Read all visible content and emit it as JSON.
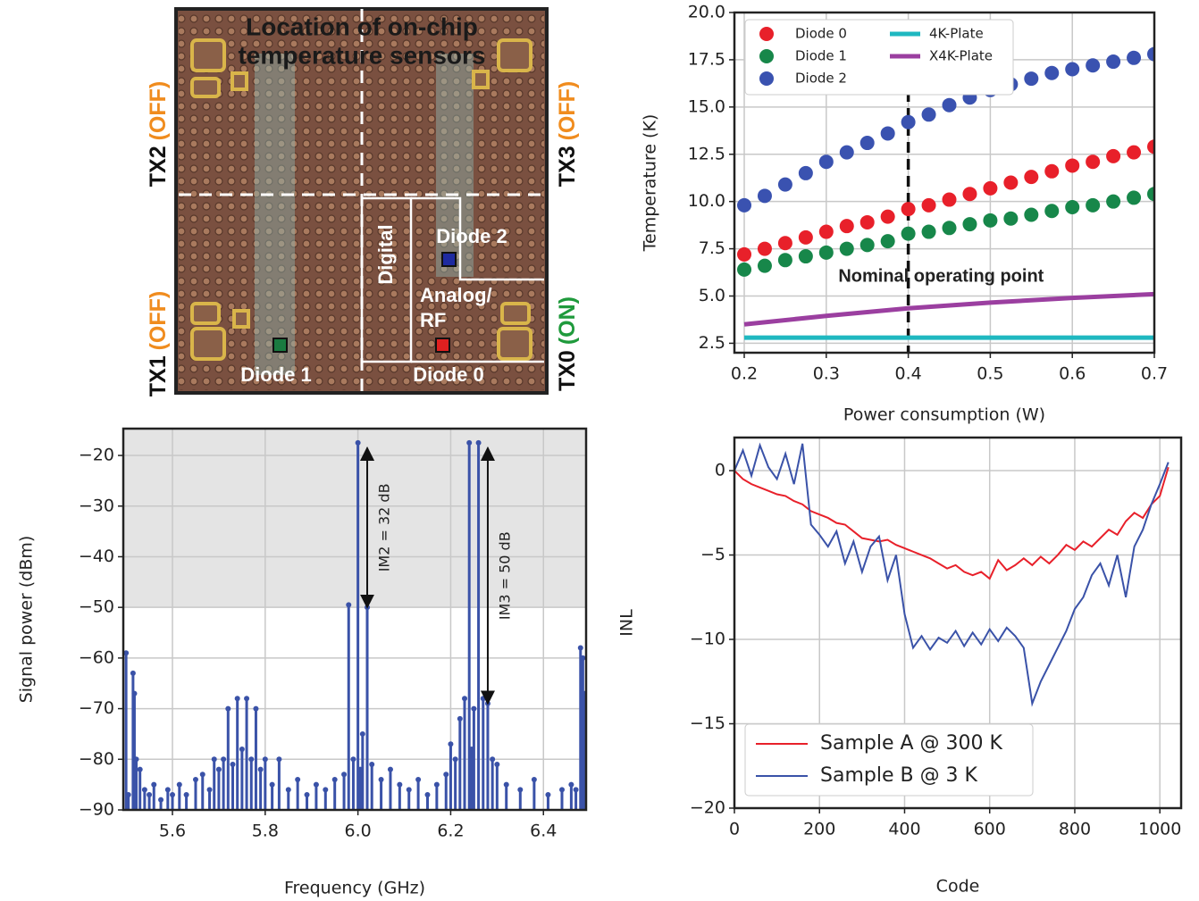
{
  "photo": {
    "title_lines": [
      "Location of on-chip",
      "temperature sensors"
    ],
    "tx": [
      {
        "name": "TX2",
        "state": "(OFF)"
      },
      {
        "name": "TX3",
        "state": "(OFF)"
      },
      {
        "name": "TX1",
        "state": "(OFF)"
      },
      {
        "name": "TX0",
        "state": "(ON)"
      }
    ],
    "regions": [
      "Digital",
      "Analog/",
      "RF"
    ],
    "diodes": [
      "Diode 2",
      "Diode 1",
      "Diode 0"
    ]
  },
  "chart_data": [
    {
      "type": "scatter",
      "xlabel": "Power consumption (W)",
      "ylabel": "Temperature (K)",
      "xlim": [
        0.188,
        0.7
      ],
      "ylim": [
        2.0,
        20
      ],
      "xticks": [
        0.2,
        0.3,
        0.4,
        0.5,
        0.6,
        0.7
      ],
      "yticks": [
        2.5,
        {
          "value": 5,
          "label": "5.0"
        },
        7.5,
        {
          "value": 10,
          "label": "10.0"
        },
        12.5,
        {
          "value": 15,
          "label": "15.0"
        },
        17.5,
        {
          "value": 20,
          "label": "20.0"
        }
      ],
      "grid": true,
      "legend": "upper left",
      "reference_x": 0.4,
      "annotations": [
        {
          "text": "Nominal operating point",
          "x": 0.44,
          "y": 6.0
        }
      ],
      "series": [
        {
          "name": "Diode 0",
          "color": "#e8202a",
          "kind": "marker",
          "x": [
            0.2,
            0.225,
            0.25,
            0.275,
            0.3,
            0.325,
            0.35,
            0.375,
            0.4,
            0.425,
            0.45,
            0.475,
            0.5,
            0.525,
            0.55,
            0.575,
            0.6,
            0.625,
            0.65,
            0.675,
            0.7
          ],
          "values": [
            7.2,
            7.5,
            7.8,
            8.1,
            8.4,
            8.7,
            8.9,
            9.2,
            9.6,
            9.8,
            10.1,
            10.4,
            10.7,
            11.0,
            11.3,
            11.6,
            11.9,
            12.1,
            12.4,
            12.6,
            12.9
          ]
        },
        {
          "name": "Diode 1",
          "color": "#17874a",
          "kind": "marker",
          "x": [
            0.2,
            0.225,
            0.25,
            0.275,
            0.3,
            0.325,
            0.35,
            0.375,
            0.4,
            0.425,
            0.45,
            0.475,
            0.5,
            0.525,
            0.55,
            0.575,
            0.6,
            0.625,
            0.65,
            0.675,
            0.7
          ],
          "values": [
            6.4,
            6.6,
            6.9,
            7.1,
            7.3,
            7.5,
            7.7,
            7.9,
            8.3,
            8.4,
            8.6,
            8.8,
            9.0,
            9.1,
            9.3,
            9.5,
            9.7,
            9.8,
            10.0,
            10.2,
            10.4
          ]
        },
        {
          "name": "Diode 2",
          "color": "#3a52b0",
          "kind": "marker",
          "x": [
            0.2,
            0.225,
            0.25,
            0.275,
            0.3,
            0.325,
            0.35,
            0.375,
            0.4,
            0.425,
            0.45,
            0.475,
            0.5,
            0.525,
            0.55,
            0.575,
            0.6,
            0.625,
            0.65,
            0.675,
            0.7
          ],
          "values": [
            9.8,
            10.3,
            10.9,
            11.5,
            12.1,
            12.6,
            13.1,
            13.6,
            14.2,
            14.6,
            15.1,
            15.5,
            15.9,
            16.2,
            16.5,
            16.8,
            17.0,
            17.2,
            17.4,
            17.6,
            17.8
          ]
        },
        {
          "name": "4K-Plate",
          "color": "#1fb8c0",
          "kind": "line",
          "x": [
            0.2,
            0.7
          ],
          "values": [
            2.8,
            2.8
          ]
        },
        {
          "name": "X4K-Plate",
          "color": "#9b3fa0",
          "kind": "line",
          "x": [
            0.2,
            0.3,
            0.4,
            0.5,
            0.6,
            0.7
          ],
          "values": [
            3.5,
            3.95,
            4.35,
            4.65,
            4.9,
            5.1
          ]
        }
      ]
    },
    {
      "type": "stem",
      "xlabel": "Frequency (GHz)",
      "ylabel": "Signal power (dBm)",
      "xlim": [
        5.494,
        6.492
      ],
      "ylim": [
        -90,
        -14.7
      ],
      "xticks": [
        5.6,
        5.8,
        {
          "value": 6,
          "label": "6.0"
        },
        6.2,
        6.4
      ],
      "yticks": [
        {
          "value": -90,
          "label": "−90"
        },
        {
          "value": -80,
          "label": "−80"
        },
        {
          "value": -70,
          "label": "−70"
        },
        {
          "value": -60,
          "label": "−60"
        },
        {
          "value": -50,
          "label": "−50"
        },
        {
          "value": -40,
          "label": "−40"
        },
        {
          "value": -30,
          "label": "−30"
        },
        {
          "value": -20,
          "label": "−20"
        }
      ],
      "grid": true,
      "color": "#3a52a8",
      "shaded_ylim": [
        -50,
        -14.7
      ],
      "annotations": [
        {
          "text": "IM2 = 32 dB",
          "x": 6.02,
          "y": [
            -18.5,
            -50
          ]
        },
        {
          "text": "IM3 = 50 dB",
          "x": 6.28,
          "y": [
            -18.5,
            -69
          ]
        }
      ],
      "x": [
        5.5,
        5.505,
        5.515,
        5.518,
        5.522,
        5.53,
        5.54,
        5.55,
        5.56,
        5.575,
        5.59,
        5.6,
        5.615,
        5.63,
        5.65,
        5.665,
        5.68,
        5.69,
        5.7,
        5.71,
        5.72,
        5.73,
        5.74,
        5.75,
        5.76,
        5.77,
        5.78,
        5.79,
        5.8,
        5.815,
        5.83,
        5.85,
        5.87,
        5.89,
        5.91,
        5.93,
        5.95,
        5.97,
        5.98,
        5.99,
        6.0,
        6.005,
        6.01,
        6.02,
        6.03,
        6.05,
        6.07,
        6.09,
        6.11,
        6.13,
        6.15,
        6.17,
        6.19,
        6.2,
        6.21,
        6.22,
        6.23,
        6.24,
        6.245,
        6.25,
        6.26,
        6.27,
        6.28,
        6.29,
        6.3,
        6.32,
        6.35,
        6.38,
        6.41,
        6.44,
        6.46,
        6.47,
        6.48,
        6.485,
        6.49,
        6.5
      ],
      "values": [
        -59,
        -87,
        -63,
        -67,
        -80,
        -82,
        -86,
        -87,
        -85,
        -88,
        -86,
        -87,
        -85,
        -87,
        -84,
        -83,
        -86,
        -80,
        -82,
        -80,
        -70,
        -81,
        -68,
        -78,
        -68,
        -80,
        -70,
        -82,
        -80,
        -85,
        -80,
        -86,
        -84,
        -87,
        -85,
        -86,
        -84,
        -83,
        -49.5,
        -80,
        -17.5,
        -82,
        -75,
        -50,
        -81,
        -84,
        -82,
        -85,
        -86,
        -84,
        -87,
        -85,
        -83,
        -77,
        -80,
        -72,
        -68,
        -17.5,
        -78,
        -70,
        -17.5,
        -68,
        -69,
        -80,
        -81,
        -85,
        -86,
        -84,
        -87,
        -86,
        -85,
        -86,
        -58,
        -60,
        -67,
        -82
      ]
    },
    {
      "type": "line",
      "xlabel": "Code",
      "ylabel": "INL",
      "xlim": [
        0,
        1050
      ],
      "ylim": [
        -20,
        1.96
      ],
      "xticks": [
        0,
        200,
        400,
        600,
        800,
        1000
      ],
      "yticks": [
        {
          "value": -20,
          "label": "−20"
        },
        {
          "value": -15,
          "label": "−15"
        },
        {
          "value": -10,
          "label": "−10"
        },
        {
          "value": -5,
          "label": "−5"
        },
        0
      ],
      "grid": true,
      "legend": "lower left",
      "x": [
        0,
        20,
        40,
        60,
        80,
        100,
        120,
        140,
        160,
        180,
        200,
        220,
        240,
        260,
        280,
        300,
        320,
        340,
        360,
        380,
        400,
        420,
        440,
        460,
        480,
        500,
        520,
        540,
        560,
        580,
        600,
        620,
        640,
        660,
        680,
        700,
        720,
        740,
        760,
        780,
        800,
        820,
        840,
        860,
        880,
        900,
        920,
        940,
        960,
        980,
        1000,
        1020
      ],
      "series": [
        {
          "name": "Sample A @ 300 K",
          "color": "#e8202a",
          "values": [
            0,
            -0.5,
            -0.8,
            -1.0,
            -1.2,
            -1.4,
            -1.5,
            -1.8,
            -2.0,
            -2.4,
            -2.6,
            -2.8,
            -3.1,
            -3.2,
            -3.6,
            -4.0,
            -4.1,
            -4.2,
            -4.1,
            -4.4,
            -4.6,
            -4.8,
            -5.0,
            -5.2,
            -5.5,
            -5.8,
            -5.6,
            -6.0,
            -6.2,
            -6.0,
            -6.4,
            -5.3,
            -5.9,
            -5.6,
            -5.2,
            -5.6,
            -5.1,
            -5.5,
            -5.0,
            -4.4,
            -4.7,
            -4.2,
            -4.5,
            -4.0,
            -3.5,
            -3.8,
            -3.0,
            -2.5,
            -2.8,
            -2.0,
            -1.5,
            0.2
          ]
        },
        {
          "name": "Sample B @ 3 K",
          "color": "#3a52a8",
          "values": [
            0,
            1.2,
            -0.3,
            1.5,
            0.2,
            -0.5,
            1.0,
            -0.8,
            1.6,
            -3.2,
            -3.8,
            -4.5,
            -3.6,
            -5.5,
            -4.2,
            -6.0,
            -4.5,
            -3.9,
            -6.5,
            -5.0,
            -8.5,
            -10.5,
            -9.8,
            -10.6,
            -9.9,
            -10.2,
            -9.5,
            -10.4,
            -9.6,
            -10.3,
            -9.4,
            -10.1,
            -9.3,
            -9.8,
            -10.5,
            -13.8,
            -12.5,
            -11.5,
            -10.5,
            -9.5,
            -8.2,
            -7.5,
            -6.2,
            -5.5,
            -6.8,
            -5.0,
            -7.5,
            -4.5,
            -3.5,
            -2.0,
            -0.8,
            0.5
          ]
        }
      ]
    }
  ]
}
